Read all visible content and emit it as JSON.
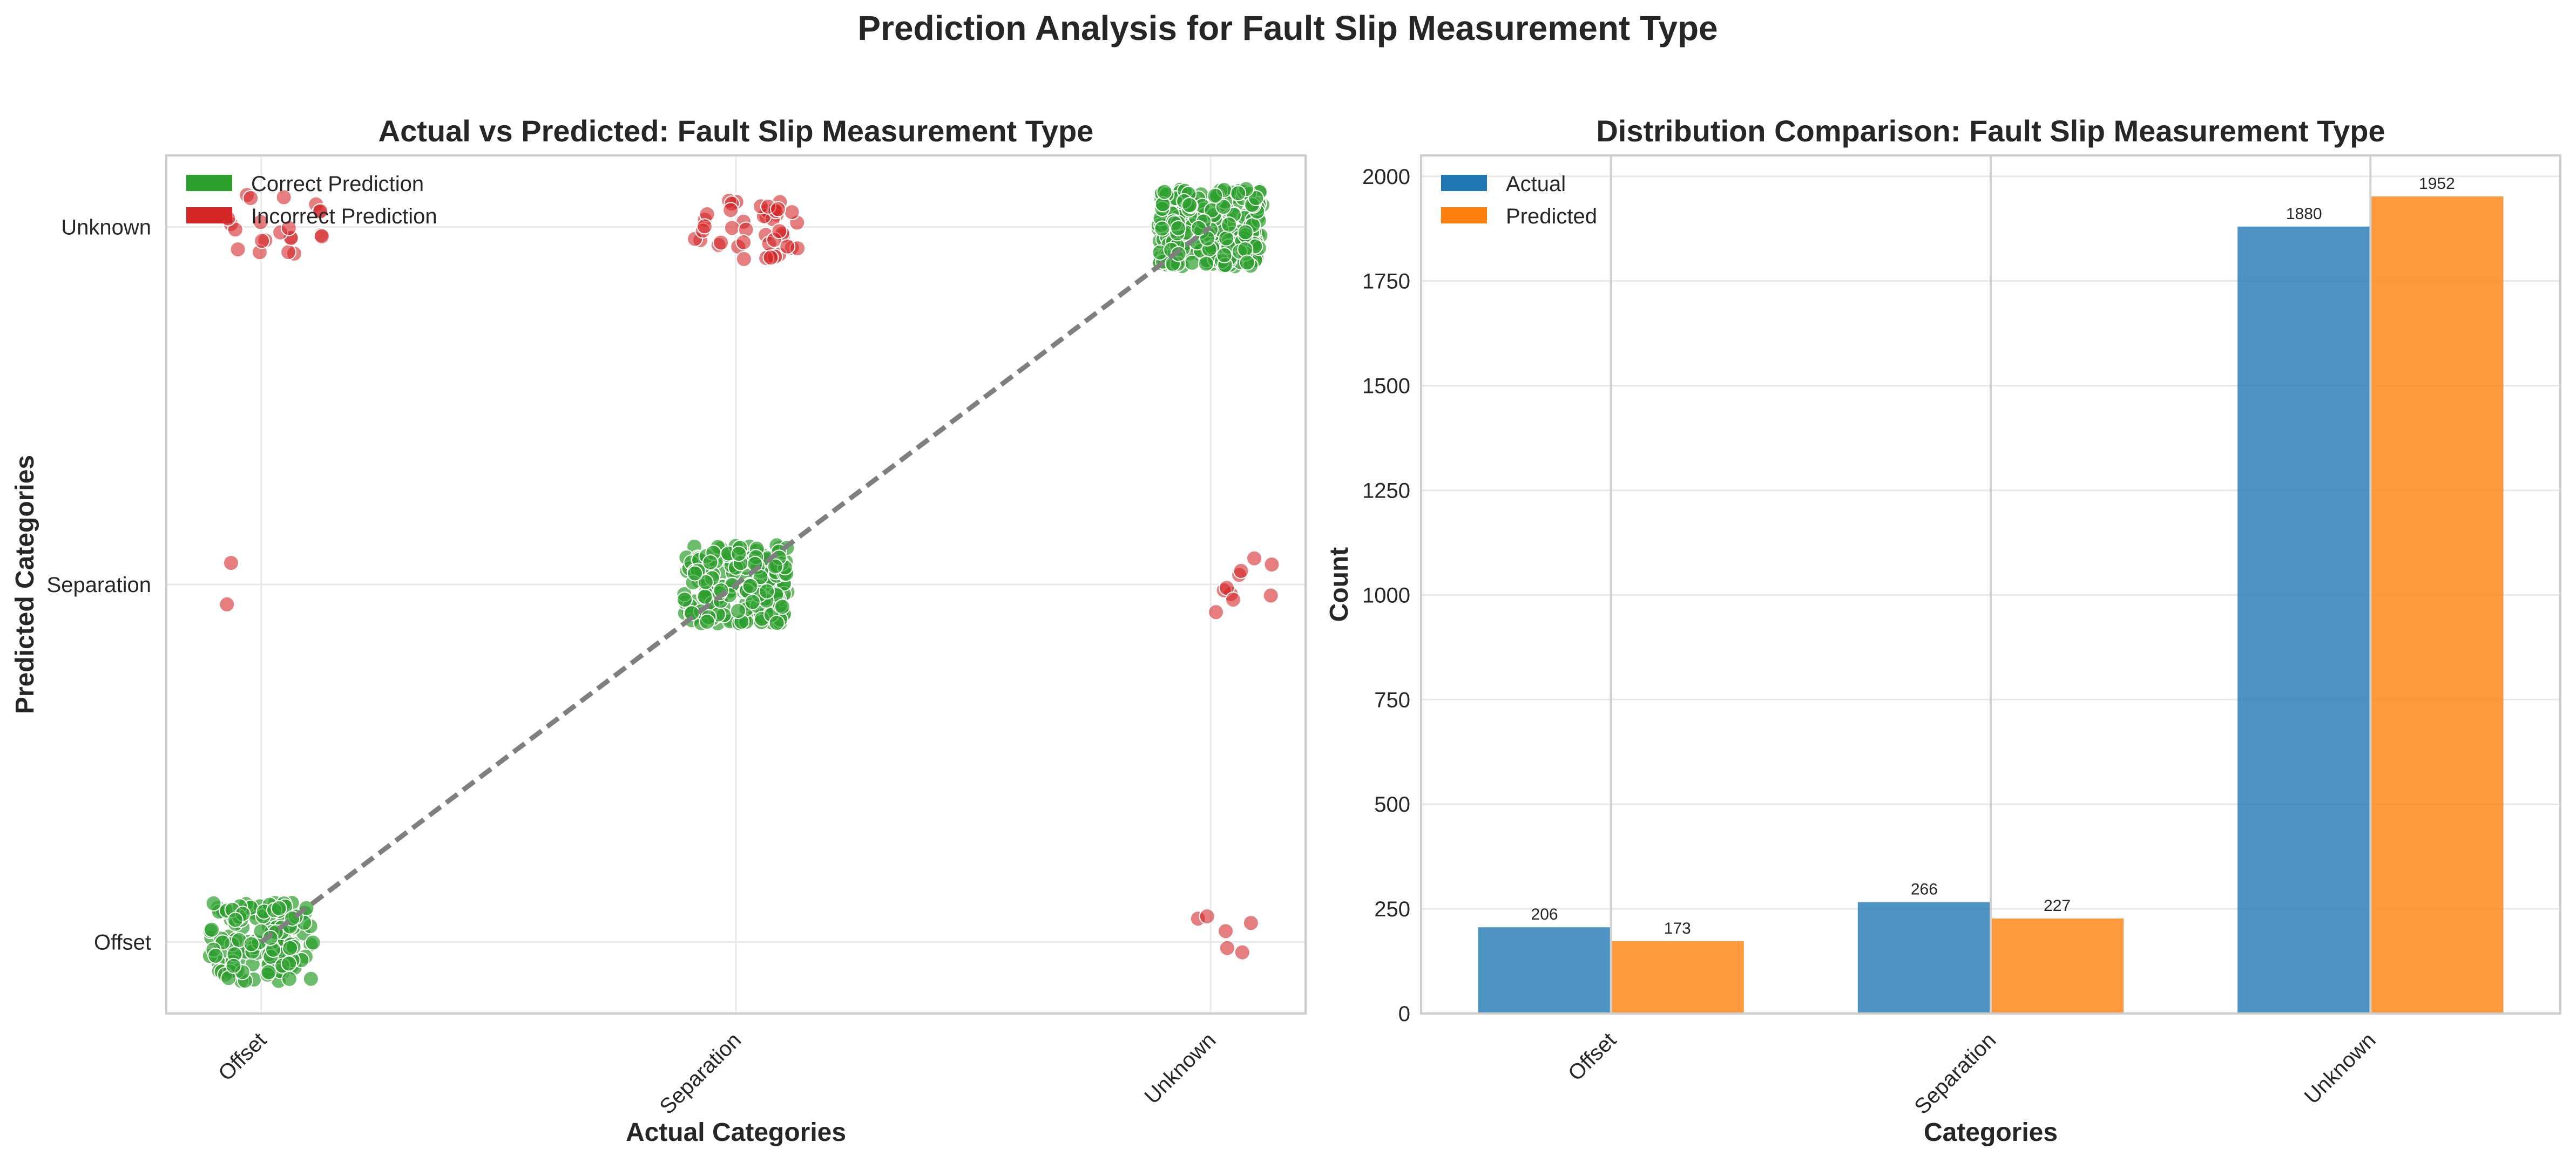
{
  "figure": {
    "suptitle": "Prediction Analysis for Fault Slip Measurement Type"
  },
  "chart_data": [
    {
      "type": "scatter",
      "title": "Actual vs Predicted: Fault Slip Measurement Type",
      "xlabel": "Actual Categories",
      "ylabel": "Predicted Categories",
      "categories": [
        "Offset",
        "Separation",
        "Unknown"
      ],
      "grid": true,
      "legend": {
        "placement": "top-left",
        "entries": [
          {
            "label": "Correct Prediction",
            "color": "#2ca02c"
          },
          {
            "label": "Incorrect Prediction",
            "color": "#d62728"
          }
        ]
      },
      "diagonal": {
        "style": "dashed",
        "color": "#7f7f7f",
        "from": "Offset",
        "to": "Unknown"
      },
      "series": [
        {
          "name": "Correct Prediction",
          "color": "#2ca02c",
          "points": [
            {
              "actual": "Offset",
              "predicted": "Offset",
              "count": 150
            },
            {
              "actual": "Separation",
              "predicted": "Separation",
              "count": 200
            },
            {
              "actual": "Unknown",
              "predicted": "Unknown",
              "count": 300
            }
          ]
        },
        {
          "name": "Incorrect Prediction",
          "color": "#d62728",
          "points": [
            {
              "actual": "Offset",
              "predicted": "Unknown",
              "count": 22
            },
            {
              "actual": "Offset",
              "predicted": "Separation",
              "count": 2
            },
            {
              "actual": "Separation",
              "predicted": "Unknown",
              "count": 45
            },
            {
              "actual": "Unknown",
              "predicted": "Separation",
              "count": 10
            },
            {
              "actual": "Unknown",
              "predicted": "Offset",
              "count": 6
            }
          ]
        }
      ]
    },
    {
      "type": "bar",
      "title": "Distribution Comparison: Fault Slip Measurement Type",
      "xlabel": "Categories",
      "ylabel": "Count",
      "categories": [
        "Offset",
        "Separation",
        "Unknown"
      ],
      "ylim": [
        0,
        2050
      ],
      "yticks": [
        0,
        250,
        500,
        750,
        1000,
        1250,
        1500,
        1750,
        2000
      ],
      "grid": true,
      "legend": {
        "placement": "top-left"
      },
      "series": [
        {
          "name": "Actual",
          "color": "#1f77b4",
          "values": [
            206,
            266,
            1880
          ]
        },
        {
          "name": "Predicted",
          "color": "#ff7f0e",
          "values": [
            173,
            227,
            1952
          ]
        }
      ]
    }
  ]
}
